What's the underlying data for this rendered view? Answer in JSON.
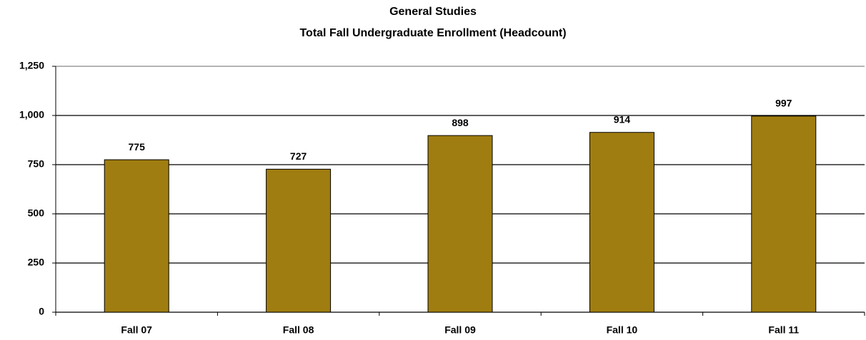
{
  "chart_data": {
    "type": "bar",
    "title": "General Studies",
    "subtitle": "Total Fall Undergraduate Enrollment (Headcount)",
    "categories": [
      "Fall 07",
      "Fall 08",
      "Fall 09",
      "Fall 10",
      "Fall 11"
    ],
    "values": [
      775,
      727,
      898,
      914,
      997
    ],
    "color": "#a07d10",
    "ylim": [
      0,
      1250
    ],
    "yticks": [
      0,
      250,
      500,
      750,
      {
        "value": 1000,
        "label": "1,000"
      },
      {
        "value": 1250,
        "label": "1,250"
      }
    ],
    "grid": true
  }
}
